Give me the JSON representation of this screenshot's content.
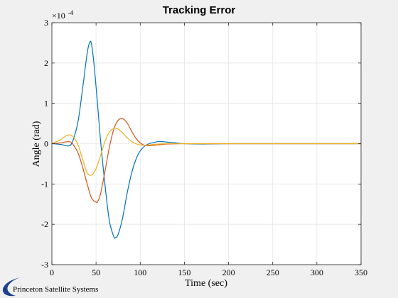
{
  "chart_data": {
    "type": "line",
    "title": "Tracking Error",
    "xlabel": "Time (sec)",
    "ylabel": "Angle (rad)",
    "xlim": [
      0,
      350
    ],
    "ylim": [
      -3,
      3
    ],
    "y_multiplier": "×10",
    "y_multiplier_exponent": "-4",
    "xticks": [
      "0",
      "50",
      "100",
      "150",
      "200",
      "250",
      "300",
      "350"
    ],
    "yticks": [
      "-3",
      "-2",
      "-1",
      "0",
      "1",
      "2",
      "3"
    ],
    "grid": true,
    "legend": "none",
    "series": [
      {
        "color": "#0072bd",
        "x": [
          0,
          10,
          20,
          25,
          30,
          35,
          40,
          43,
          45,
          48,
          52,
          55,
          60,
          65,
          70,
          72,
          75,
          80,
          85,
          90,
          95,
          100,
          105,
          110,
          115,
          120,
          125,
          130,
          140,
          150,
          170,
          200,
          250,
          300,
          350
        ],
        "y": [
          0,
          -0.02,
          -0.05,
          0.15,
          0.6,
          1.4,
          2.25,
          2.52,
          2.45,
          1.9,
          0.9,
          0.1,
          -1.0,
          -1.9,
          -2.3,
          -2.33,
          -2.25,
          -1.85,
          -1.25,
          -0.75,
          -0.4,
          -0.18,
          -0.06,
          0.0,
          0.03,
          0.05,
          0.05,
          0.04,
          0.02,
          0.0,
          -0.01,
          0.0,
          0.0,
          0.0,
          0.0
        ]
      },
      {
        "color": "#d95319",
        "x": [
          0,
          10,
          20,
          25,
          30,
          35,
          40,
          45,
          50,
          52,
          55,
          60,
          65,
          70,
          75,
          80,
          85,
          90,
          95,
          100,
          105,
          110,
          120,
          130,
          150,
          200,
          250,
          300,
          350
        ],
        "y": [
          0,
          0.02,
          0.05,
          -0.05,
          -0.25,
          -0.6,
          -1.0,
          -1.35,
          -1.45,
          -1.43,
          -1.25,
          -0.7,
          -0.1,
          0.35,
          0.58,
          0.62,
          0.52,
          0.32,
          0.14,
          0.02,
          -0.04,
          -0.05,
          -0.03,
          -0.01,
          0.0,
          0.0,
          0.0,
          0.0,
          0.0
        ]
      },
      {
        "color": "#edb120",
        "x": [
          0,
          10,
          15,
          20,
          25,
          30,
          35,
          40,
          45,
          50,
          55,
          60,
          65,
          70,
          75,
          80,
          85,
          90,
          95,
          100,
          105,
          110,
          120,
          130,
          150,
          200,
          250,
          300,
          350
        ],
        "y": [
          0,
          0.1,
          0.18,
          0.22,
          0.15,
          -0.05,
          -0.4,
          -0.72,
          -0.78,
          -0.62,
          -0.3,
          0.05,
          0.28,
          0.38,
          0.36,
          0.27,
          0.15,
          0.06,
          0.0,
          -0.03,
          -0.04,
          -0.03,
          -0.01,
          0.0,
          0.0,
          0.0,
          0.0,
          0.0,
          0.0
        ]
      }
    ]
  },
  "logo": {
    "text": "Princeton Satellite Systems",
    "swoosh_color": "#1f3f8f"
  }
}
